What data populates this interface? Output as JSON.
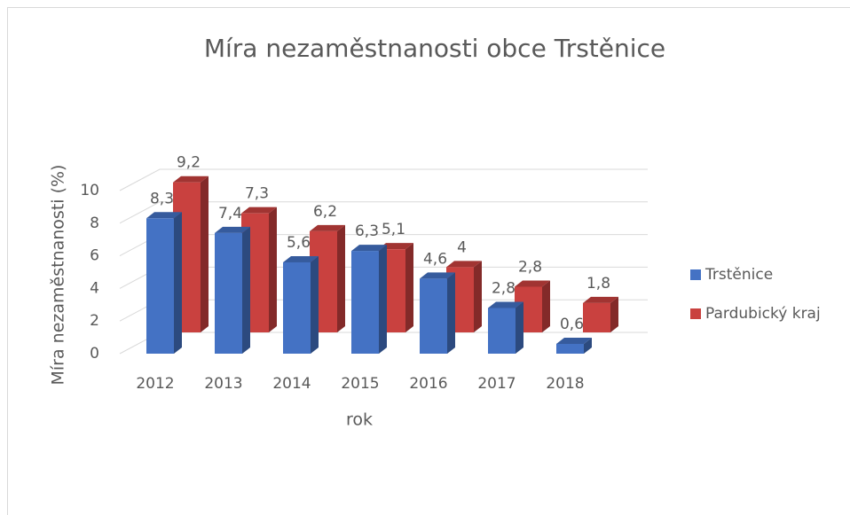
{
  "chart_data": {
    "type": "bar3d",
    "title": "Míra nezaměstnanosti obce Trstěnice",
    "x_label": "rok",
    "y_label": "Míra nezaměstnanosti (%)",
    "categories": [
      "2012",
      "2013",
      "2014",
      "2015",
      "2016",
      "2017",
      "2018"
    ],
    "series": [
      {
        "name": "Trstěnice",
        "color": "#4472c4",
        "values": [
          8.3,
          7.4,
          5.6,
          6.3,
          4.6,
          2.8,
          0.6
        ],
        "value_labels": [
          "8,3",
          "7,4",
          "5,6",
          "6,3",
          "4,6",
          "2,8",
          "0,6"
        ]
      },
      {
        "name": "Pardubický kraj",
        "color": "#c9413f",
        "values": [
          9.2,
          7.3,
          6.2,
          5.1,
          4,
          2.8,
          1.8
        ],
        "value_labels": [
          "9,2",
          "7,3",
          "6,2",
          "5,1",
          "4",
          "2,8",
          "1,8"
        ]
      }
    ],
    "ylim": [
      0,
      10
    ],
    "yticks": [
      0,
      2,
      4,
      6,
      8,
      10
    ],
    "grid": true,
    "legend": "right"
  }
}
